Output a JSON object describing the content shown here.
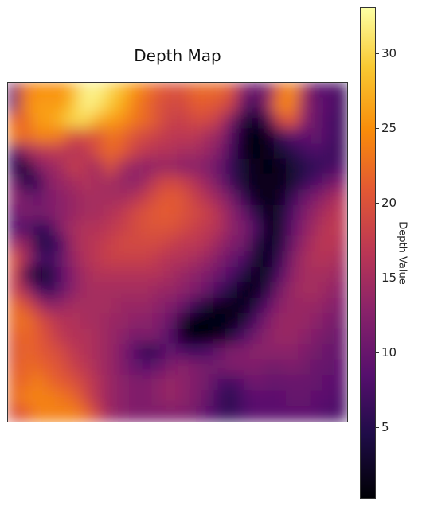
{
  "chart_data": {
    "type": "heatmap",
    "title": "Depth Map",
    "colormap": "inferno",
    "colorbar": {
      "label": "Depth Value",
      "range": [
        0.3,
        33
      ],
      "ticks": [
        5,
        10,
        15,
        20,
        25,
        30
      ]
    },
    "grid": false,
    "axes_visible": false,
    "legend_placement": "right",
    "values": [
      [
        11,
        23,
        25,
        25,
        25,
        28,
        32,
        32,
        30,
        28,
        25,
        23,
        21,
        20,
        20,
        22,
        22,
        22,
        20,
        12,
        10,
        11,
        22,
        25,
        15,
        8,
        9,
        7
      ],
      [
        10,
        24,
        26,
        26,
        26,
        29,
        32,
        31,
        29,
        27,
        24,
        22,
        20,
        19,
        19,
        21,
        21,
        20,
        18,
        10,
        6,
        14,
        24,
        24,
        14,
        10,
        9,
        7
      ],
      [
        22,
        22,
        26,
        26,
        28,
        30,
        30,
        27,
        26,
        25,
        23,
        22,
        20,
        18,
        18,
        19,
        19,
        17,
        11,
        4,
        2,
        6,
        18,
        21,
        13,
        10,
        8,
        7
      ],
      [
        24,
        22,
        24,
        24,
        23,
        19,
        20,
        20,
        23,
        22,
        20,
        19,
        18,
        17,
        17,
        17,
        15,
        14,
        8,
        2,
        1,
        2,
        6,
        9,
        9,
        10,
        8,
        7
      ],
      [
        8,
        14,
        16,
        17,
        17,
        16,
        17,
        20,
        22,
        21,
        18,
        17,
        16,
        16,
        15,
        15,
        14,
        12,
        7,
        2,
        1,
        2,
        3,
        5,
        7,
        8,
        7,
        7
      ],
      [
        6,
        3,
        12,
        14,
        15,
        18,
        16,
        15,
        20,
        15,
        14,
        13,
        14,
        14,
        13,
        13,
        12,
        10,
        6,
        3,
        2,
        1,
        2,
        3,
        5,
        6,
        7,
        8
      ],
      [
        11,
        5,
        6,
        13,
        14,
        15,
        16,
        15,
        15,
        14,
        13,
        15,
        18,
        19,
        18,
        16,
        14,
        11,
        7,
        3,
        2,
        2,
        2,
        3,
        6,
        8,
        10,
        12
      ],
      [
        13,
        11,
        10,
        12,
        13,
        14,
        15,
        15,
        15,
        15,
        16,
        18,
        20,
        21,
        20,
        18,
        16,
        14,
        11,
        6,
        2,
        2,
        2,
        6,
        10,
        12,
        14,
        16
      ],
      [
        10,
        12,
        11,
        12,
        13,
        14,
        15,
        15,
        16,
        17,
        19,
        20,
        21,
        21,
        20,
        19,
        18,
        16,
        13,
        10,
        5,
        2,
        3,
        8,
        12,
        14,
        16,
        17
      ],
      [
        8,
        9,
        6,
        7,
        13,
        15,
        16,
        16,
        17,
        18,
        19,
        20,
        20,
        20,
        19,
        18,
        17,
        16,
        13,
        12,
        8,
        2,
        3,
        9,
        13,
        15,
        17,
        17
      ],
      [
        14,
        14,
        5,
        5,
        8,
        15,
        16,
        17,
        18,
        19,
        19,
        19,
        19,
        18,
        17,
        17,
        16,
        14,
        12,
        11,
        5,
        2,
        4,
        10,
        14,
        16,
        17,
        16
      ],
      [
        20,
        15,
        8,
        7,
        10,
        14,
        16,
        17,
        18,
        18,
        18,
        18,
        17,
        16,
        16,
        15,
        14,
        12,
        10,
        8,
        3,
        2,
        6,
        12,
        15,
        16,
        16,
        15
      ],
      [
        19,
        7,
        2,
        4,
        9,
        13,
        15,
        16,
        16,
        16,
        16,
        16,
        16,
        15,
        14,
        13,
        12,
        10,
        8,
        4,
        2,
        3,
        8,
        13,
        15,
        15,
        15,
        14
      ],
      [
        18,
        15,
        8,
        6,
        10,
        13,
        15,
        15,
        15,
        15,
        15,
        15,
        14,
        14,
        13,
        12,
        10,
        7,
        4,
        2,
        2,
        5,
        11,
        14,
        15,
        15,
        14,
        13
      ],
      [
        22,
        20,
        16,
        13,
        14,
        15,
        15,
        15,
        15,
        14,
        14,
        14,
        13,
        12,
        10,
        6,
        3,
        2,
        2,
        2,
        4,
        9,
        13,
        14,
        14,
        14,
        13,
        12
      ],
      [
        22,
        23,
        20,
        18,
        16,
        16,
        15,
        15,
        14,
        14,
        13,
        13,
        12,
        10,
        3,
        1,
        1,
        1,
        2,
        3,
        8,
        12,
        14,
        14,
        14,
        13,
        12,
        11
      ],
      [
        21,
        22,
        21,
        19,
        17,
        16,
        16,
        15,
        14,
        13,
        11,
        12,
        11,
        8,
        2,
        1,
        1,
        2,
        4,
        8,
        11,
        13,
        14,
        14,
        13,
        12,
        11,
        10
      ],
      [
        20,
        22,
        21,
        20,
        19,
        17,
        16,
        15,
        14,
        12,
        9,
        5,
        7,
        10,
        8,
        7,
        8,
        10,
        12,
        12,
        13,
        13,
        13,
        13,
        12,
        11,
        10,
        10
      ],
      [
        21,
        22,
        22,
        21,
        20,
        18,
        17,
        15,
        14,
        12,
        10,
        9,
        10,
        12,
        13,
        12,
        11,
        11,
        12,
        12,
        12,
        11,
        11,
        12,
        11,
        10,
        10,
        9
      ],
      [
        22,
        22,
        24,
        22,
        21,
        20,
        18,
        16,
        14,
        13,
        12,
        12,
        13,
        14,
        13,
        12,
        11,
        8,
        7,
        9,
        11,
        10,
        10,
        10,
        10,
        10,
        9,
        9
      ],
      [
        22,
        24,
        24,
        24,
        23,
        22,
        19,
        16,
        14,
        13,
        12,
        12,
        13,
        14,
        13,
        12,
        10,
        7,
        5,
        8,
        9,
        9,
        9,
        10,
        10,
        9,
        9,
        8
      ],
      [
        20,
        21,
        24,
        24,
        24,
        24,
        22,
        18,
        14,
        13,
        12,
        12,
        12,
        12,
        12,
        11,
        9,
        7,
        6,
        8,
        9,
        9,
        9,
        9,
        9,
        9,
        8,
        8
      ]
    ]
  }
}
